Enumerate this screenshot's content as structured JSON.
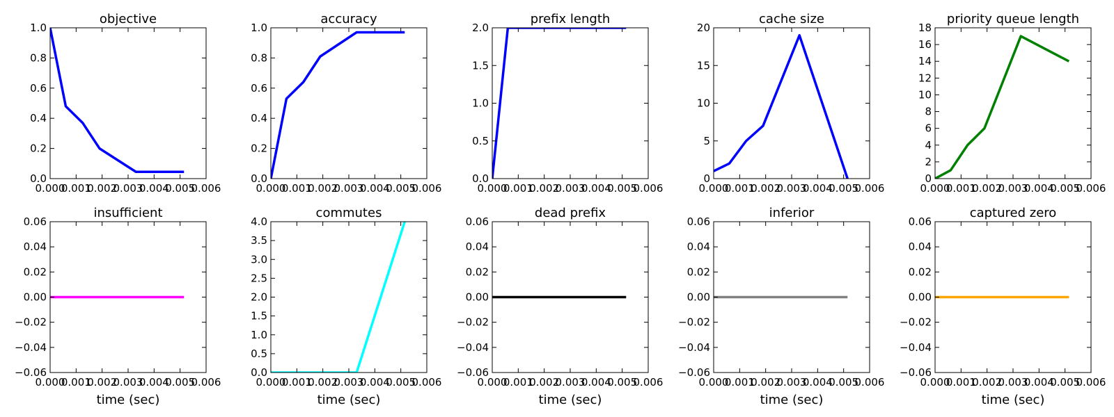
{
  "chart_data": [
    {
      "type": "line",
      "title": "objective",
      "xlabel": "",
      "xlim": [
        0,
        0.006
      ],
      "ylim": [
        0,
        1.0
      ],
      "xticks": [
        "0.000",
        "0.001",
        "0.002",
        "0.003",
        "0.004",
        "0.005",
        "0.006"
      ],
      "yticks": [
        "0.0",
        "0.2",
        "0.4",
        "0.6",
        "0.8",
        "1.0"
      ],
      "series": [
        {
          "color": "#0000ff",
          "x": [
            0,
            0.0006,
            0.00125,
            0.0019,
            0.0033,
            0.00515
          ],
          "y": [
            1.0,
            0.48,
            0.37,
            0.2,
            0.045,
            0.045
          ]
        }
      ]
    },
    {
      "type": "line",
      "title": "accuracy",
      "xlabel": "",
      "xlim": [
        0,
        0.006
      ],
      "ylim": [
        0,
        1.0
      ],
      "xticks": [
        "0.000",
        "0.001",
        "0.002",
        "0.003",
        "0.004",
        "0.005",
        "0.006"
      ],
      "yticks": [
        "0.0",
        "0.2",
        "0.4",
        "0.6",
        "0.8",
        "1.0"
      ],
      "series": [
        {
          "color": "#0000ff",
          "x": [
            0,
            0.0006,
            0.00125,
            0.0019,
            0.0033,
            0.00515
          ],
          "y": [
            0,
            0.53,
            0.64,
            0.81,
            0.97,
            0.97
          ]
        }
      ]
    },
    {
      "type": "line",
      "title": "prefix length",
      "xlabel": "",
      "xlim": [
        0,
        0.006
      ],
      "ylim": [
        0,
        2.0
      ],
      "xticks": [
        "0.000",
        "0.001",
        "0.002",
        "0.003",
        "0.004",
        "0.005",
        "0.006"
      ],
      "yticks": [
        "0.0",
        "0.5",
        "1.0",
        "1.5",
        "2.0"
      ],
      "series": [
        {
          "color": "#0000ff",
          "x": [
            0,
            0.0006,
            0.00125,
            0.0019,
            0.0033,
            0.00515
          ],
          "y": [
            0,
            2,
            2,
            2,
            2,
            2
          ]
        }
      ]
    },
    {
      "type": "line",
      "title": "cache size",
      "xlabel": "",
      "xlim": [
        0,
        0.006
      ],
      "ylim": [
        0,
        20
      ],
      "xticks": [
        "0.000",
        "0.001",
        "0.002",
        "0.003",
        "0.004",
        "0.005",
        "0.006"
      ],
      "yticks": [
        "0",
        "5",
        "10",
        "15",
        "20"
      ],
      "series": [
        {
          "color": "#0000ff",
          "x": [
            0,
            0.0006,
            0.00125,
            0.0019,
            0.0033,
            0.00515
          ],
          "y": [
            1,
            2,
            5,
            7,
            19,
            0
          ]
        }
      ]
    },
    {
      "type": "line",
      "title": "priority queue length",
      "xlabel": "",
      "xlim": [
        0,
        0.006
      ],
      "ylim": [
        0,
        18
      ],
      "xticks": [
        "0.000",
        "0.001",
        "0.002",
        "0.003",
        "0.004",
        "0.005",
        "0.006"
      ],
      "yticks": [
        "0",
        "2",
        "4",
        "6",
        "8",
        "10",
        "12",
        "14",
        "16",
        "18"
      ],
      "series": [
        {
          "color": "#008000",
          "x": [
            0,
            0.0006,
            0.00125,
            0.0019,
            0.0033,
            0.00515
          ],
          "y": [
            0,
            1,
            4,
            6,
            17,
            14
          ]
        }
      ]
    },
    {
      "type": "line",
      "title": "insufficient",
      "xlabel": "time (sec)",
      "xlim": [
        0,
        0.006
      ],
      "ylim": [
        -0.06,
        0.06
      ],
      "xticks": [
        "0.000",
        "0.001",
        "0.002",
        "0.003",
        "0.004",
        "0.005",
        "0.006"
      ],
      "yticks": [
        "−0.06",
        "−0.04",
        "−0.02",
        "0.00",
        "0.02",
        "0.04",
        "0.06"
      ],
      "series": [
        {
          "color": "#ff00ff",
          "x": [
            0,
            0.00515
          ],
          "y": [
            0,
            0
          ]
        }
      ]
    },
    {
      "type": "line",
      "title": "commutes",
      "xlabel": "time (sec)",
      "xlim": [
        0,
        0.006
      ],
      "ylim": [
        0,
        4.0
      ],
      "xticks": [
        "0.000",
        "0.001",
        "0.002",
        "0.003",
        "0.004",
        "0.005",
        "0.006"
      ],
      "yticks": [
        "0.0",
        "0.5",
        "1.0",
        "1.5",
        "2.0",
        "2.5",
        "3.0",
        "3.5",
        "4.0"
      ],
      "series": [
        {
          "color": "#00ffff",
          "x": [
            0,
            0.0006,
            0.00125,
            0.0019,
            0.0033,
            0.00515
          ],
          "y": [
            0,
            0,
            0,
            0,
            0,
            4
          ]
        }
      ]
    },
    {
      "type": "line",
      "title": "dead prefix",
      "xlabel": "time (sec)",
      "xlim": [
        0,
        0.006
      ],
      "ylim": [
        -0.06,
        0.06
      ],
      "xticks": [
        "0.000",
        "0.001",
        "0.002",
        "0.003",
        "0.004",
        "0.005",
        "0.006"
      ],
      "yticks": [
        "−0.06",
        "−0.04",
        "−0.02",
        "0.00",
        "0.02",
        "0.04",
        "0.06"
      ],
      "series": [
        {
          "color": "#000000",
          "x": [
            0,
            0.00515
          ],
          "y": [
            0,
            0
          ]
        }
      ]
    },
    {
      "type": "line",
      "title": "inferior",
      "xlabel": "time (sec)",
      "xlim": [
        0,
        0.006
      ],
      "ylim": [
        -0.06,
        0.06
      ],
      "xticks": [
        "0.000",
        "0.001",
        "0.002",
        "0.003",
        "0.004",
        "0.005",
        "0.006"
      ],
      "yticks": [
        "−0.06",
        "−0.04",
        "−0.02",
        "0.00",
        "0.02",
        "0.04",
        "0.06"
      ],
      "series": [
        {
          "color": "#808080",
          "x": [
            0,
            0.00515
          ],
          "y": [
            0,
            0
          ]
        }
      ]
    },
    {
      "type": "line",
      "title": "captured zero",
      "xlabel": "time (sec)",
      "xlim": [
        0,
        0.006
      ],
      "ylim": [
        -0.06,
        0.06
      ],
      "xticks": [
        "0.000",
        "0.001",
        "0.002",
        "0.003",
        "0.004",
        "0.005",
        "0.006"
      ],
      "yticks": [
        "−0.06",
        "−0.04",
        "−0.02",
        "0.00",
        "0.02",
        "0.04",
        "0.06"
      ],
      "series": [
        {
          "color": "#ffa500",
          "x": [
            0,
            0.00515
          ],
          "y": [
            0,
            0
          ]
        }
      ]
    }
  ]
}
